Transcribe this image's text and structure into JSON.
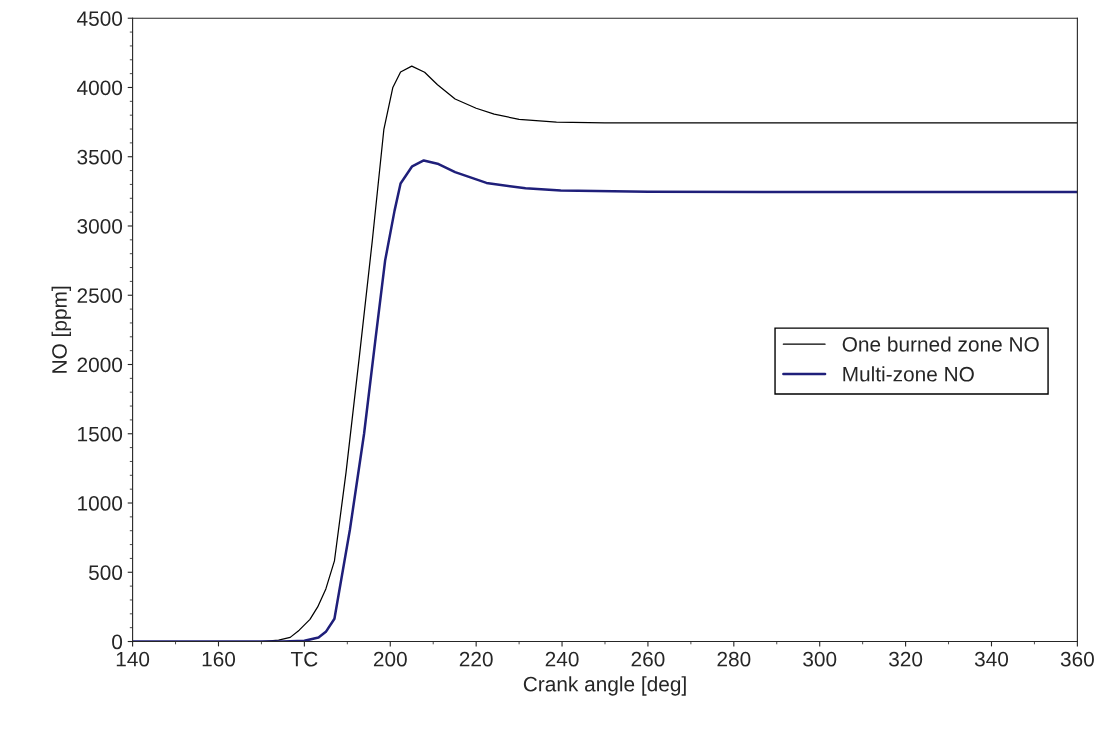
{
  "chart_data": {
    "type": "line",
    "xlabel": "Crank angle [deg]",
    "ylabel": "NO [ppm]",
    "xlim": [
      140,
      360
    ],
    "ylim": [
      0,
      4500
    ],
    "xticks": [
      140,
      160,
      {
        "value": 180,
        "label": "TC"
      },
      200,
      220,
      240,
      260,
      280,
      300,
      320,
      340,
      360
    ],
    "yticks": [
      0,
      500,
      1000,
      1500,
      2000,
      2500,
      3000,
      3500,
      4000,
      4500
    ],
    "grid": false,
    "legend": "right",
    "marker": "none",
    "line_style": "solid",
    "series": [
      {
        "name": "One burned zone NO",
        "color": "#000000",
        "x": [
          140,
          170,
          174,
          176.7,
          178.8,
          181.3,
          183.1,
          185,
          187,
          189.7,
          192.8,
          195.8,
          198.5,
          200.6,
          202.4,
          205,
          208,
          211,
          215.1,
          220,
          224.2,
          230,
          238.7,
          250,
          300,
          360
        ],
        "values": [
          0,
          0,
          10,
          30,
          82,
          160,
          250,
          380,
          582,
          1221,
          2057,
          2889,
          3695,
          4000,
          4112,
          4154,
          4110,
          4020,
          3917,
          3850,
          3807,
          3770,
          3750,
          3745,
          3745,
          3745
        ]
      },
      {
        "name": "Multi-zone NO",
        "color": "#1f1f7a",
        "x": [
          140,
          175,
          180,
          183.3,
          185,
          187,
          190.6,
          193.9,
          196.6,
          198.8,
          201,
          202.4,
          205.1,
          207.8,
          211,
          215.1,
          222.4,
          231.5,
          239.7,
          260,
          300,
          360
        ],
        "values": [
          0,
          0,
          5,
          29,
          70,
          164,
          807,
          1500,
          2194,
          2750,
          3111,
          3307,
          3431,
          3473,
          3450,
          3389,
          3311,
          3272,
          3256,
          3248,
          3245,
          3245
        ]
      }
    ]
  }
}
